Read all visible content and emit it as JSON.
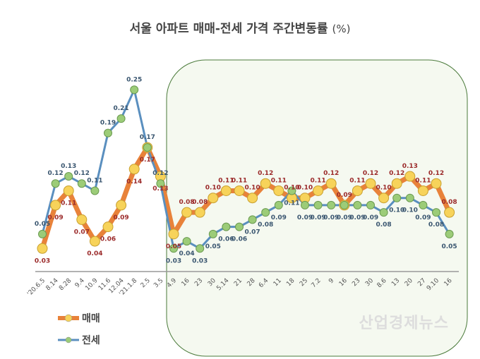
{
  "chart_data": {
    "type": "line",
    "title": "서울 아파트 매매-전세 가격 주간변동률",
    "title_unit": "(%)",
    "categories": [
      "'20.6.5",
      "8.14",
      "8.28",
      "9.4",
      "10.9",
      "11.6",
      "12.04",
      "'21.1.8",
      "2.5",
      "3.5",
      "4.9",
      "16",
      "23",
      "30",
      "5.14",
      "21",
      "28",
      "6.4",
      "11",
      "18",
      "25",
      "7.2",
      "9",
      "16",
      "23",
      "30",
      "8.6",
      "13",
      "20",
      "27",
      "9.10",
      "16"
    ],
    "series": [
      {
        "name": "매매",
        "color": "#e8823a",
        "marker": "#f7d35a",
        "label_color": "#9b2a2a",
        "values": [
          0.03,
          0.09,
          0.11,
          0.07,
          0.04,
          0.06,
          0.09,
          0.14,
          0.17,
          0.13,
          0.05,
          0.08,
          0.08,
          0.1,
          0.11,
          0.11,
          0.1,
          0.12,
          0.11,
          0.1,
          0.1,
          0.11,
          0.12,
          0.09,
          0.11,
          0.12,
          0.1,
          0.12,
          0.13,
          0.11,
          0.12,
          0.08
        ]
      },
      {
        "name": "전세",
        "color": "#5a8fbf",
        "marker": "#9ccc78",
        "label_color": "#3a5670",
        "values": [
          0.05,
          0.12,
          0.13,
          0.12,
          0.11,
          0.19,
          0.21,
          0.25,
          0.17,
          0.12,
          0.03,
          0.04,
          0.03,
          0.05,
          0.06,
          0.06,
          0.07,
          0.08,
          0.09,
          0.11,
          0.09,
          0.09,
          0.09,
          0.09,
          0.09,
          0.09,
          0.08,
          0.1,
          0.1,
          0.09,
          0.08,
          0.05
        ]
      }
    ],
    "highlight_region": {
      "from": "4.9",
      "to": "16"
    },
    "legend_position": "bottom-left",
    "grid": false
  },
  "watermark": "산업경제뉴스"
}
